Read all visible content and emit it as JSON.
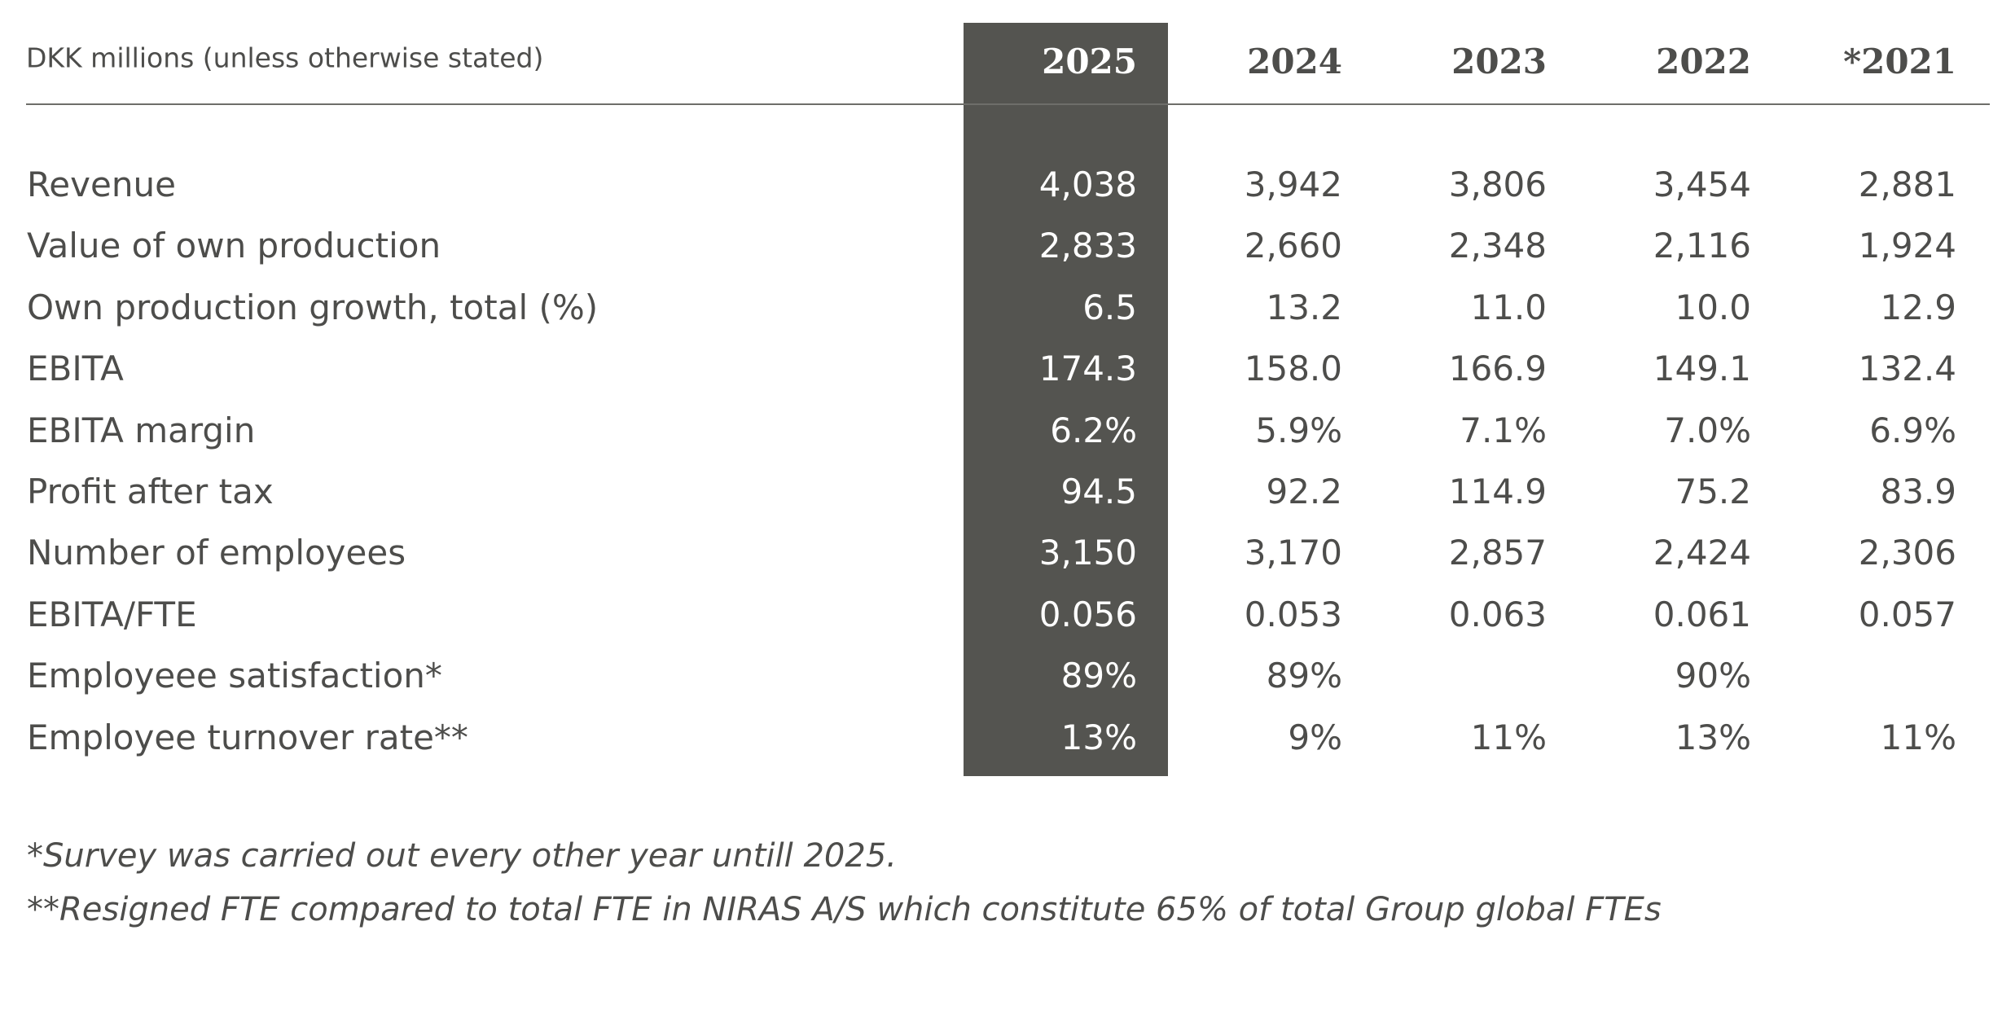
{
  "table": {
    "header_label": "DKK millions (unless otherwise stated)",
    "columns": [
      "2025",
      "2024",
      "2023",
      "2022",
      "*2021"
    ],
    "rows": [
      {
        "label": "Revenue",
        "values": [
          "4,038",
          "3,942",
          "3,806",
          "3,454",
          "2,881"
        ]
      },
      {
        "label": "Value of own production",
        "values": [
          "2,833",
          "2,660",
          "2,348",
          "2,116",
          "1,924"
        ]
      },
      {
        "label": "Own production growth, total (%)",
        "values": [
          "6.5",
          "13.2",
          "11.0",
          "10.0",
          "12.9"
        ]
      },
      {
        "label": "EBITA",
        "values": [
          "174.3",
          "158.0",
          "166.9",
          "149.1",
          "132.4"
        ]
      },
      {
        "label": "EBITA margin",
        "values": [
          "6.2%",
          "5.9%",
          "7.1%",
          "7.0%",
          "6.9%"
        ]
      },
      {
        "label": "Profit after tax",
        "values": [
          "94.5",
          "92.2",
          "114.9",
          "75.2",
          "83.9"
        ]
      },
      {
        "label": "Number of employees",
        "values": [
          "3,150",
          "3,170",
          "2,857",
          "2,424",
          "2,306"
        ]
      },
      {
        "label": "EBITA/FTE",
        "values": [
          "0.056",
          "0.053",
          "0.063",
          "0.061",
          "0.057"
        ]
      },
      {
        "label": "Employeee satisfaction*",
        "values": [
          "89%",
          "89%",
          null,
          "90%",
          null
        ]
      },
      {
        "label": "Employee turnover rate**",
        "values": [
          "13%",
          "9%",
          "11%",
          "13%",
          "11%"
        ]
      }
    ]
  },
  "footnotes": [
    "*Survey was carried out every other year untill 2025.",
    "**Resigned FTE compared to total FTE in NIRAS A/S which constitute 65% of total Group global FTEs"
  ]
}
